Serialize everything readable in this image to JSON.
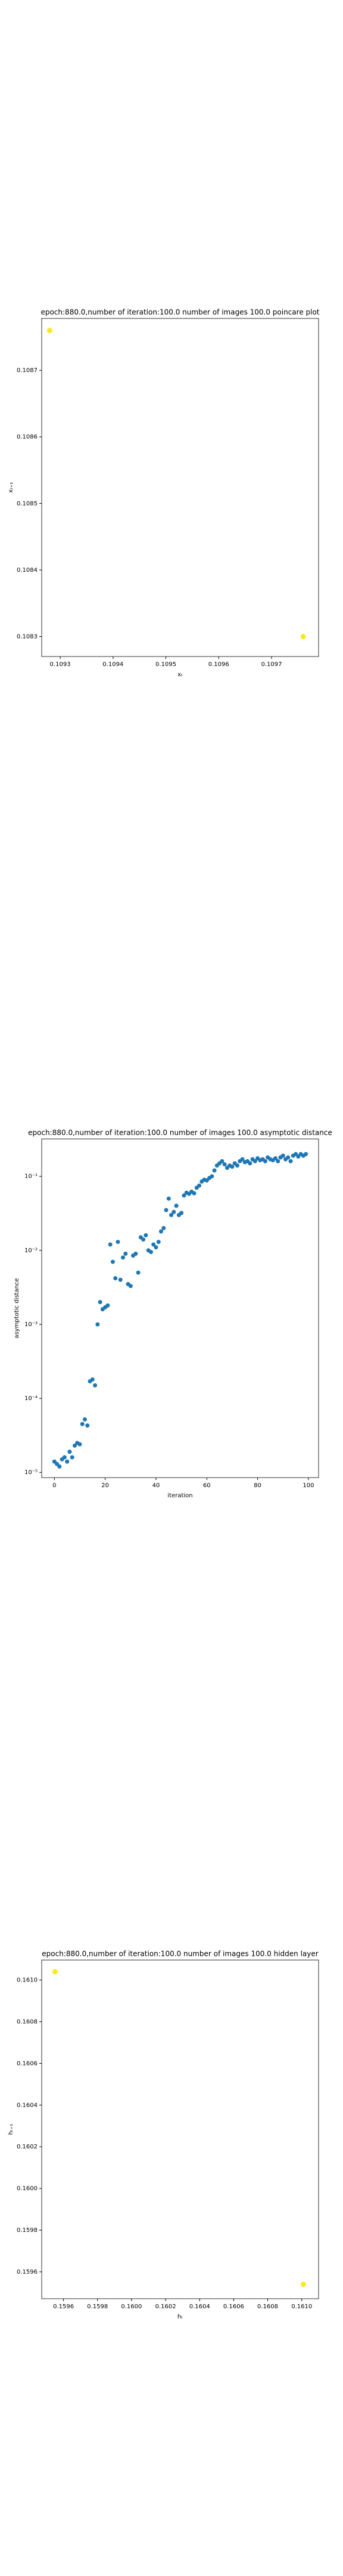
{
  "chart_data": [
    {
      "type": "scatter",
      "title": "epoch:880.0,number of iteration:100.0 number of images 100.0 poincare plot",
      "xlabel": "xₜ",
      "ylabel": "xₜ₊₁",
      "x": [
        0.10928,
        0.10976
      ],
      "values": [
        0.10876,
        0.1083
      ],
      "color": "#fde725",
      "xlim": [
        0.109265,
        0.109789
      ],
      "ylim": [
        0.10827,
        0.108778
      ],
      "xticks": [
        0.1093,
        0.1094,
        0.1095,
        0.1096,
        0.1097
      ],
      "yticks": [
        0.1083,
        0.1084,
        0.1085,
        0.1086,
        0.1087
      ]
    },
    {
      "type": "scatter",
      "title": "epoch:880.0,number of iteration:100.0  number of images 100.0 asymptotic distance",
      "xlabel": "iteration",
      "ylabel": "asymptotic distance",
      "x": [
        0,
        1,
        2,
        3,
        4,
        5,
        6,
        7,
        8,
        9,
        10,
        11,
        12,
        13,
        14,
        15,
        16,
        17,
        18,
        19,
        20,
        21,
        22,
        23,
        24,
        25,
        26,
        27,
        28,
        29,
        30,
        31,
        32,
        33,
        34,
        35,
        36,
        37,
        38,
        39,
        40,
        41,
        42,
        43,
        44,
        45,
        46,
        47,
        48,
        49,
        50,
        51,
        52,
        53,
        54,
        55,
        56,
        57,
        58,
        59,
        60,
        61,
        62,
        63,
        64,
        65,
        66,
        67,
        68,
        69,
        70,
        71,
        72,
        73,
        74,
        75,
        76,
        77,
        78,
        79,
        80,
        81,
        82,
        83,
        84,
        85,
        86,
        87,
        88,
        89,
        90,
        91,
        92,
        93,
        94,
        95,
        96,
        97,
        98,
        99
      ],
      "values": [
        1.4e-05,
        1.3e-05,
        1.2e-05,
        1.5e-05,
        1.6e-05,
        1.4e-05,
        1.9e-05,
        1.6e-05,
        2.3e-05,
        2.5e-05,
        2.4e-05,
        4.5e-05,
        5.2e-05,
        4.3e-05,
        0.00017,
        0.00018,
        0.00015,
        0.001,
        0.002,
        0.0016,
        0.0017,
        0.0018,
        0.012,
        0.007,
        0.0042,
        0.013,
        0.004,
        0.008,
        0.009,
        0.0035,
        0.0033,
        0.0085,
        0.009,
        0.005,
        0.015,
        0.014,
        0.016,
        0.01,
        0.0095,
        0.012,
        0.011,
        0.013,
        0.018,
        0.02,
        0.035,
        0.05,
        0.03,
        0.033,
        0.04,
        0.03,
        0.032,
        0.055,
        0.06,
        0.058,
        0.062,
        0.059,
        0.07,
        0.075,
        0.085,
        0.09,
        0.088,
        0.095,
        0.1,
        0.12,
        0.14,
        0.15,
        0.16,
        0.145,
        0.13,
        0.14,
        0.135,
        0.15,
        0.14,
        0.16,
        0.17,
        0.155,
        0.16,
        0.15,
        0.17,
        0.16,
        0.175,
        0.165,
        0.17,
        0.16,
        0.18,
        0.17,
        0.165,
        0.175,
        0.16,
        0.18,
        0.19,
        0.17,
        0.18,
        0.16,
        0.19,
        0.2,
        0.185,
        0.2,
        0.19,
        0.2
      ],
      "color": "#1f77b4",
      "yscale": "log",
      "xlim": [
        -5,
        104
      ],
      "ylim": [
        8.5e-06,
        0.32
      ],
      "xticks": [
        0,
        20,
        40,
        60,
        80,
        100
      ],
      "yticks": [
        {
          "value": 1e-05,
          "label": "10⁻⁵"
        },
        {
          "value": 0.0001,
          "label": "10⁻⁴"
        },
        {
          "value": 0.001,
          "label": "10⁻³"
        },
        {
          "value": 0.01,
          "label": "10⁻²"
        },
        {
          "value": 0.1,
          "label": "10⁻¹"
        }
      ]
    },
    {
      "type": "scatter",
      "title": "epoch:880.0,number of iteration:100.0  number of images 100.0 hidden layer",
      "xlabel": "hₜ",
      "ylabel": "hₜ₊₁",
      "x": [
        0.15955,
        0.16101
      ],
      "values": [
        0.16104,
        0.15954
      ],
      "color": "#fde725",
      "xlim": [
        0.159472,
        0.161099
      ],
      "ylim": [
        0.159471,
        0.161096
      ],
      "xticks": [
        0.1596,
        0.1598,
        {
          "value": 0.16,
          "label": "0.1600"
        },
        0.1602,
        0.1604,
        0.1606,
        0.1608,
        {
          "value": 0.161,
          "label": "0.1610"
        }
      ],
      "yticks": [
        0.1596,
        0.1598,
        {
          "value": 0.16,
          "label": "0.1600"
        },
        0.1602,
        0.1604,
        0.1606,
        0.1608,
        {
          "value": 0.161,
          "label": "0.1610"
        }
      ]
    }
  ]
}
